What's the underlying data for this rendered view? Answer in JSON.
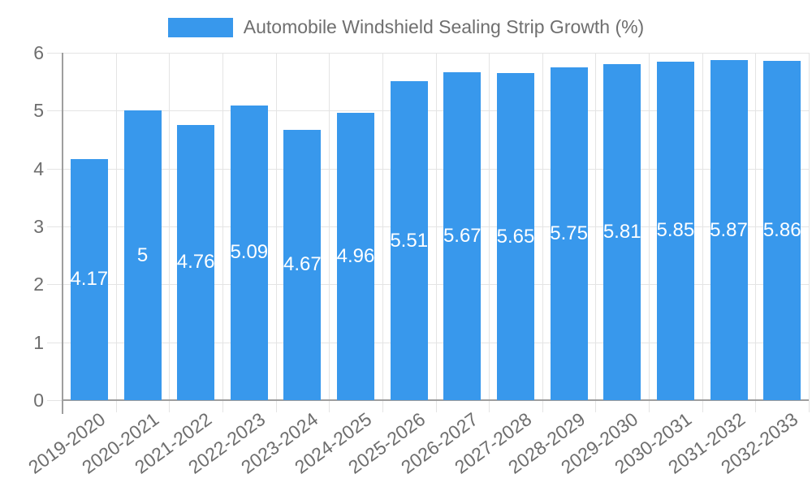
{
  "chart_data": {
    "type": "bar",
    "title": "Automobile Windshield Sealing Strip Growth (%)",
    "legend_label": "Automobile Windshield Sealing Strip Growth (%)",
    "legend_position": "top",
    "categories": [
      "2019-2020",
      "2020-2021",
      "2021-2022",
      "2022-2023",
      "2023-2024",
      "2024-2025",
      "2025-2026",
      "2026-2027",
      "2027-2028",
      "2028-2029",
      "2029-2030",
      "2030-2031",
      "2031-2032",
      "2032-2033"
    ],
    "values": [
      4.17,
      5,
      4.76,
      5.09,
      4.67,
      4.96,
      5.51,
      5.67,
      5.65,
      5.75,
      5.81,
      5.85,
      5.87,
      5.86
    ],
    "value_labels": [
      "4.17",
      "5",
      "4.76",
      "5.09",
      "4.67",
      "4.96",
      "5.51",
      "5.67",
      "5.65",
      "5.75",
      "5.81",
      "5.85",
      "5.87",
      "5.86"
    ],
    "xlabel": "",
    "ylabel": "",
    "ylim": [
      0,
      6
    ],
    "yticks": [
      0,
      1,
      2,
      3,
      4,
      5,
      6
    ],
    "grid": true,
    "colors": {
      "bar": "#3898ec",
      "gridline": "#e4e4e4",
      "axis_line": "#9e9e9e",
      "tick_text": "#6e6e6e",
      "legend_text": "#6f6f6f",
      "bar_label_text": "#ffffff",
      "background": "#ffffff"
    }
  }
}
